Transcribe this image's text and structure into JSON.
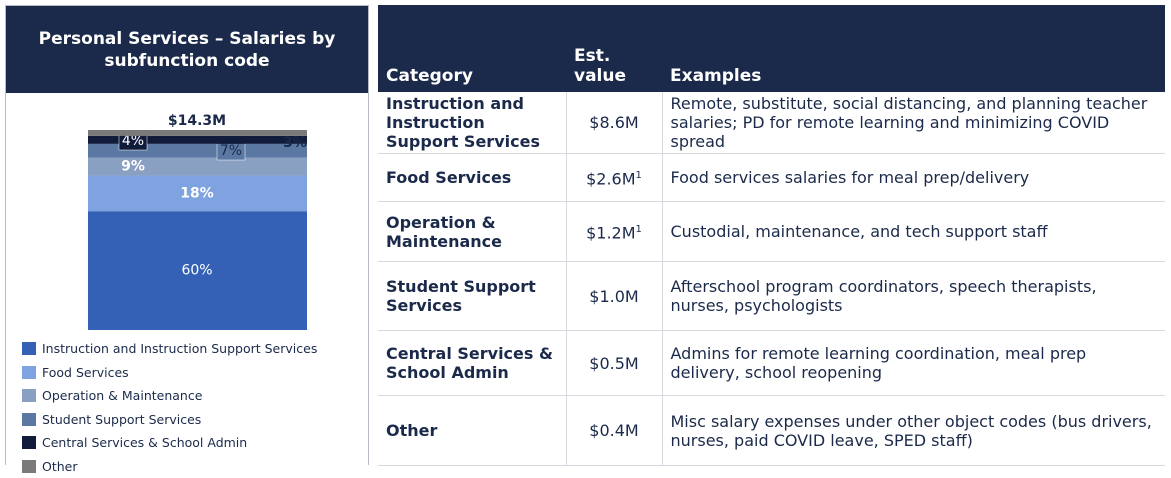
{
  "chart_data": {
    "type": "stacked_bar",
    "title": "Personal Services – Salaries by subfunction code",
    "annotation": "$14.3M",
    "categories": [
      null
    ],
    "series": [
      {
        "name": "Instruction and Instruction Support Services",
        "color": "#3461b5",
        "values": [
          60
        ],
        "value_labels": [
          "60%"
        ]
      },
      {
        "name": "Food Services",
        "color": "#7fa3e0",
        "values": [
          18
        ],
        "value_labels": [
          "18%"
        ]
      },
      {
        "name": "Operation & Maintenance",
        "color": "#8aa0c2",
        "values": [
          9
        ],
        "value_labels": [
          "9%"
        ]
      },
      {
        "name": "Student Support Services",
        "color": "#5b78a3",
        "values": [
          7
        ],
        "value_labels": [
          "7%"
        ]
      },
      {
        "name": "Central Services & School Admin",
        "color": "#111c3b",
        "values": [
          4
        ],
        "value_labels": [
          "4%"
        ]
      },
      {
        "name": "Other",
        "color": "#7a7a7a",
        "values": [
          3
        ],
        "value_labels": [
          "3%"
        ]
      }
    ]
  },
  "table": {
    "header": [
      "Category",
      "Est. value",
      "Examples"
    ],
    "rows": [
      {
        "category": "Instruction and Instruction Support Services",
        "value": "$8.6M",
        "examples": "Remote, substitute, social distancing, and planning teacher salaries; PD for remote learning and minimizing COVID spread"
      },
      {
        "category": "Food Services",
        "value": "$2.6M",
        "sup": "1",
        "examples": "Food services salaries for meal prep/delivery"
      },
      {
        "category": "Operation & Maintenance",
        "value": "$1.2M",
        "sup": "1",
        "examples": "Custodial, maintenance, and tech support staff"
      },
      {
        "category": "Student Support Services",
        "value": "$1.0M",
        "examples": "Afterschool program coordinators, speech therapists, nurses, psychologists"
      },
      {
        "category": "Central Services & School Admin",
        "value": "$0.5M",
        "examples": "Admins for remote learning coordination, meal prep delivery, school reopening"
      },
      {
        "category": "Other",
        "value": "$0.4M",
        "examples": "Misc salary expenses under other object codes (bus drivers, nurses, paid COVID leave, SPED staff)"
      }
    ]
  }
}
